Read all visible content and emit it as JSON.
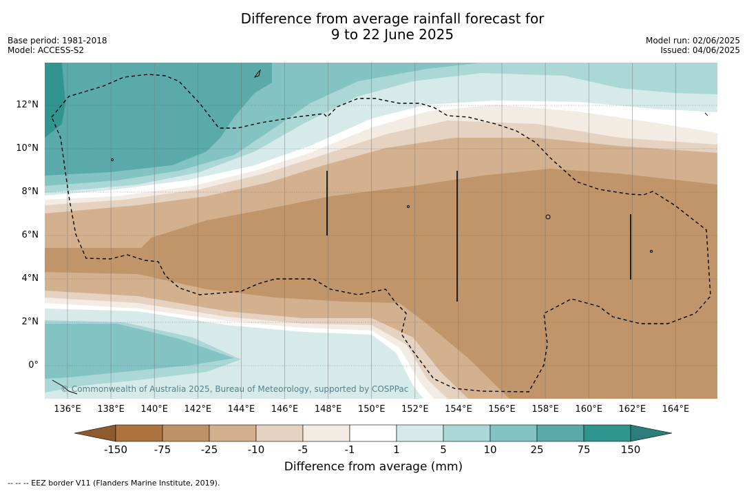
{
  "title_line1": "Difference from average rainfall forecast for",
  "title_line2": "9 to 22 June 2025",
  "base_period": "Base period: 1981-2018",
  "model": "Model: ACCESS-S2",
  "model_run": "Model run: 02/06/2025",
  "issued": "Issued: 04/06/2025",
  "copyright": "© Commonwealth of Australia 2025, Bureau of Meteorology, supported by COSPPac",
  "x_ticks": [
    "136°E",
    "138°E",
    "140°E",
    "142°E",
    "144°E",
    "146°E",
    "148°E",
    "150°E",
    "152°E",
    "154°E",
    "156°E",
    "158°E",
    "160°E",
    "162°E",
    "164°E"
  ],
  "y_ticks": [
    "12°N",
    "10°N",
    "8°N",
    "6°N",
    "4°N",
    "2°N",
    "0°"
  ],
  "colorbar": {
    "labels": [
      "-150",
      "-75",
      "-25",
      "-10",
      "-5",
      "-1",
      "1",
      "5",
      "10",
      "25",
      "75",
      "150"
    ],
    "colors": [
      "#8c5a2c",
      "#ab7440",
      "#bf9166",
      "#d2b08d",
      "#e5d2c0",
      "#f2ece5",
      "#ffffff",
      "#d6eaea",
      "#acd7d7",
      "#84c3c3",
      "#5aaaaa",
      "#31958f",
      "#2a7d78"
    ],
    "title": "Difference from average (mm)"
  },
  "eez_note": "--  --  -- EEZ border V11 (Flanders Marine Institute, 2019).",
  "map_colors": {
    "dry_strong": "#c09569",
    "dry_mid": "#d3b08e",
    "dry_light": "#e5d2c0",
    "dry_faint": "#f2ece5",
    "neutral": "#ffffff",
    "wet_faint": "#d6eaea",
    "wet_light": "#acd7d7",
    "wet_mid": "#84c3c3",
    "wet_strong": "#5aaaaa",
    "wet_max": "#31958f"
  }
}
